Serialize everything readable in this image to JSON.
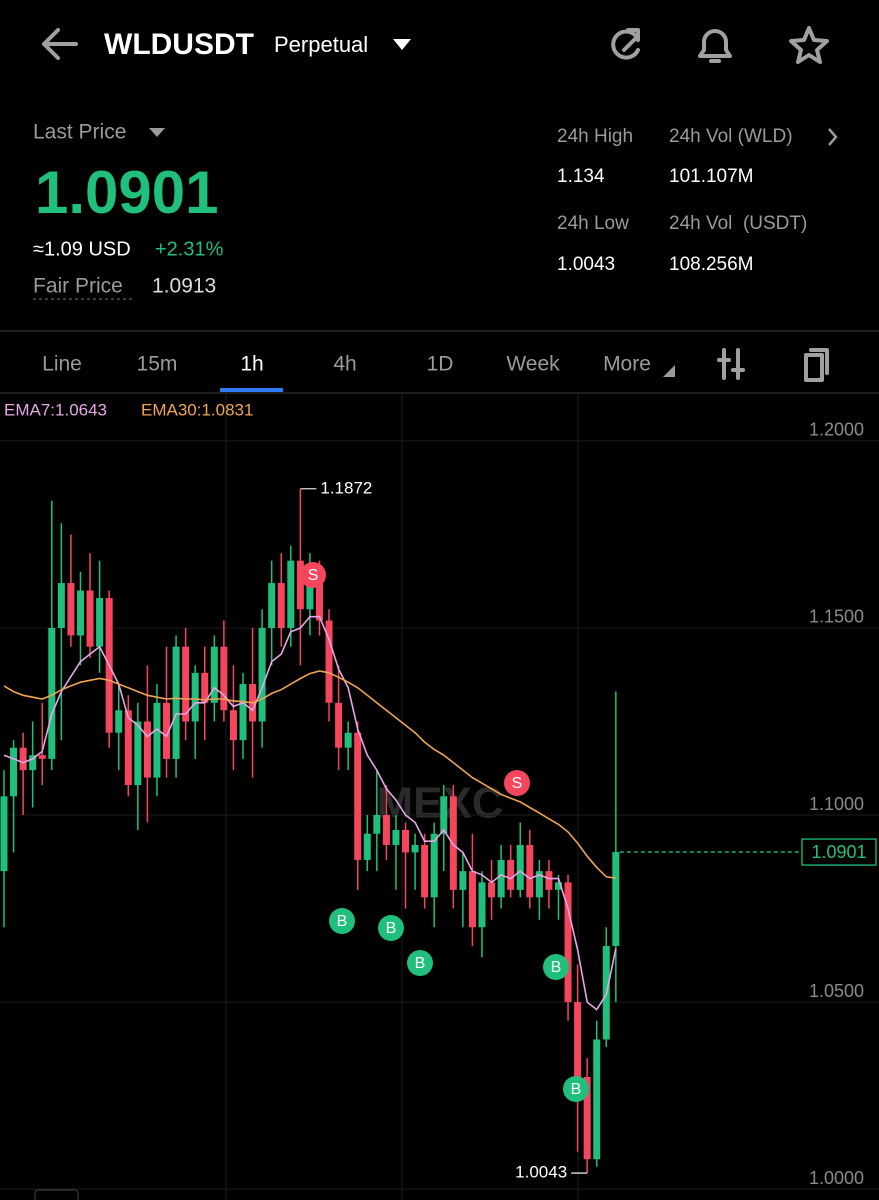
{
  "header": {
    "title": "WLDUSDT",
    "contract": "Perpetual",
    "last_price_label": "Last Price",
    "last_price": "1.0901",
    "usd_price": "≈1.09 USD",
    "change": "+2.31%",
    "fair_price_label": "Fair Price",
    "fair_price": "1.0913",
    "stats": [
      {
        "label": "24h High",
        "value": "1.134"
      },
      {
        "label": "24h Vol (WLD)",
        "value": "101.107M"
      },
      {
        "label": "24h Low",
        "value": "1.0043"
      },
      {
        "label": "24h Vol  (USDT)",
        "value": "108.256M"
      }
    ]
  },
  "tabs": [
    "Line",
    "15m",
    "1h",
    "4h",
    "1D",
    "Week",
    "More"
  ],
  "chart_data": {
    "type": "candlestick",
    "watermark": "MEXC",
    "open": [
      1.085,
      1.105,
      1.118,
      1.112,
      1.116,
      1.115,
      1.15,
      1.162,
      1.148,
      1.16,
      1.145,
      1.158,
      1.122,
      1.128,
      1.108,
      1.125,
      1.11,
      1.13,
      1.115,
      1.145,
      1.125,
      1.138,
      1.13,
      1.145,
      1.128,
      1.12,
      1.135,
      1.125,
      1.15,
      1.162,
      1.15,
      1.168,
      1.155,
      1.165,
      1.152,
      1.13,
      1.118,
      1.122,
      1.088,
      1.095,
      1.1,
      1.092,
      1.096,
      1.09,
      1.092,
      1.078,
      1.095,
      1.105,
      1.08,
      1.085,
      1.07,
      1.082,
      1.078,
      1.088,
      1.08,
      1.092,
      1.078,
      1.085,
      1.08,
      1.082,
      1.05,
      1.03,
      1.008,
      1.04,
      1.065
    ],
    "high": [
      1.112,
      1.12,
      1.122,
      1.125,
      1.13,
      1.184,
      1.178,
      1.175,
      1.165,
      1.17,
      1.168,
      1.16,
      1.135,
      1.132,
      1.13,
      1.14,
      1.135,
      1.145,
      1.148,
      1.15,
      1.14,
      1.145,
      1.148,
      1.152,
      1.14,
      1.138,
      1.15,
      1.155,
      1.168,
      1.17,
      1.172,
      1.1872,
      1.17,
      1.168,
      1.155,
      1.14,
      1.125,
      1.125,
      1.1,
      1.112,
      1.108,
      1.1,
      1.098,
      1.095,
      1.095,
      1.098,
      1.108,
      1.108,
      1.09,
      1.095,
      1.085,
      1.088,
      1.092,
      1.092,
      1.098,
      1.096,
      1.088,
      1.088,
      1.084,
      1.084,
      1.06,
      1.035,
      1.045,
      1.07,
      1.133
    ],
    "low": [
      1.07,
      1.09,
      1.1,
      1.102,
      1.108,
      1.112,
      1.12,
      1.145,
      1.14,
      1.142,
      1.138,
      1.118,
      1.112,
      1.105,
      1.096,
      1.098,
      1.105,
      1.11,
      1.11,
      1.12,
      1.115,
      1.12,
      1.125,
      1.125,
      1.112,
      1.115,
      1.11,
      1.118,
      1.14,
      1.145,
      1.145,
      1.14,
      1.148,
      1.148,
      1.125,
      1.112,
      1.112,
      1.08,
      1.085,
      1.085,
      1.088,
      1.08,
      1.075,
      1.08,
      1.075,
      1.07,
      1.085,
      1.075,
      1.07,
      1.065,
      1.062,
      1.072,
      1.075,
      1.078,
      1.078,
      1.075,
      1.072,
      1.075,
      1.072,
      1.045,
      1.01,
      1.0043,
      1.006,
      1.038,
      1.05
    ],
    "close": [
      1.105,
      1.118,
      1.112,
      1.116,
      1.115,
      1.15,
      1.162,
      1.148,
      1.16,
      1.145,
      1.158,
      1.122,
      1.128,
      1.108,
      1.125,
      1.11,
      1.13,
      1.115,
      1.145,
      1.125,
      1.138,
      1.13,
      1.145,
      1.128,
      1.12,
      1.135,
      1.125,
      1.15,
      1.162,
      1.15,
      1.168,
      1.155,
      1.165,
      1.152,
      1.13,
      1.118,
      1.122,
      1.088,
      1.095,
      1.1,
      1.092,
      1.096,
      1.09,
      1.092,
      1.078,
      1.095,
      1.105,
      1.08,
      1.085,
      1.07,
      1.082,
      1.078,
      1.088,
      1.08,
      1.092,
      1.078,
      1.085,
      1.08,
      1.082,
      1.05,
      1.03,
      1.008,
      1.04,
      1.065,
      1.0901
    ],
    "up_color": "#20c07c",
    "down_color": "#f6465d",
    "series": [
      {
        "label": "EMA7:1.0643",
        "color": "#e6a6e6",
        "values": [
          1.116,
          1.115,
          1.114,
          1.115,
          1.117,
          1.127,
          1.133,
          1.137,
          1.141,
          1.143,
          1.145,
          1.14,
          1.135,
          1.126,
          1.124,
          1.121,
          1.123,
          1.121,
          1.127,
          1.127,
          1.13,
          1.13,
          1.134,
          1.132,
          1.129,
          1.13,
          1.128,
          1.134,
          1.141,
          1.143,
          1.149,
          1.15,
          1.153,
          1.153,
          1.147,
          1.139,
          1.134,
          1.123,
          1.116,
          1.112,
          1.107,
          1.104,
          1.1,
          1.098,
          1.093,
          1.093,
          1.096,
          1.092,
          1.09,
          1.085,
          1.084,
          1.082,
          1.084,
          1.083,
          1.085,
          1.083,
          1.084,
          1.083,
          1.083,
          1.075,
          1.064,
          1.05,
          1.048,
          1.052,
          1.0643
        ]
      },
      {
        "label": "EMA30:1.0831",
        "color": "#f0a352",
        "values": [
          1.1345,
          1.133,
          1.132,
          1.1315,
          1.131,
          1.132,
          1.1335,
          1.1345,
          1.1355,
          1.136,
          1.1365,
          1.136,
          1.135,
          1.134,
          1.133,
          1.132,
          1.1315,
          1.131,
          1.1312,
          1.131,
          1.131,
          1.1308,
          1.131,
          1.131,
          1.1305,
          1.1303,
          1.13,
          1.131,
          1.1325,
          1.1335,
          1.135,
          1.1365,
          1.1378,
          1.1385,
          1.138,
          1.1368,
          1.1355,
          1.134,
          1.132,
          1.13,
          1.128,
          1.126,
          1.124,
          1.122,
          1.1195,
          1.1175,
          1.116,
          1.114,
          1.112,
          1.11,
          1.1085,
          1.107,
          1.1055,
          1.1045,
          1.1035,
          1.102,
          1.1005,
          1.099,
          1.0975,
          1.0955,
          1.0925,
          1.089,
          1.086,
          1.0835,
          1.0831
        ]
      }
    ],
    "ylim": [
      0.9971,
      1.2128
    ],
    "yticks": [
      {
        "value": 1.2,
        "label": "1.2000"
      },
      {
        "value": 1.15,
        "label": "1.1500"
      },
      {
        "value": 1.1,
        "label": "1.1000"
      },
      {
        "value": 1.05,
        "label": "1.0500"
      },
      {
        "value": 1.0,
        "label": "1.0000"
      }
    ],
    "grid": true,
    "max_annotation": 1.1872,
    "min_annotation": 1.0043,
    "last_price": 1.0901,
    "signals": [
      "S",
      "S",
      "B",
      "B",
      "B",
      "B",
      "B"
    ]
  }
}
